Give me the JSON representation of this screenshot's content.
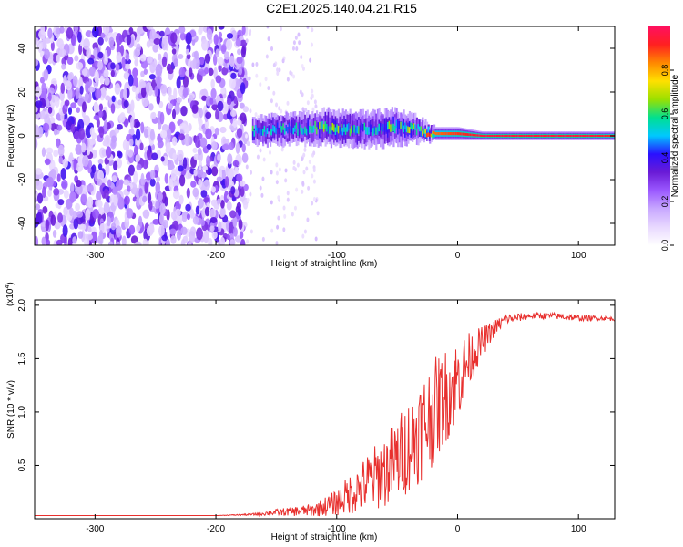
{
  "title": "C2E1.2025.140.04.21.R15",
  "chart_data": [
    {
      "type": "heatmap",
      "title": "C2E1.2025.140.04.21.R15",
      "xlabel": "Height of straight line (km)",
      "ylabel": "Frequency (Hz)",
      "xlim": [
        -350,
        130
      ],
      "ylim": [
        -50,
        50
      ],
      "x_ticks": [
        -300,
        -200,
        -100,
        0,
        100
      ],
      "y_ticks": [
        -40,
        -20,
        0,
        20,
        40
      ],
      "colorbar": {
        "label": "Normalized spectral amplitude",
        "range": [
          0,
          1
        ],
        "ticks": [
          "0.0",
          "0.2",
          "0.4",
          "0.6",
          "0.8"
        ],
        "colors": [
          "#ffffff",
          "#e8d8ff",
          "#c8a8ff",
          "#9b59ff",
          "#6a1bd6",
          "#2a10ff",
          "#00c8ff",
          "#00e090",
          "#9be000",
          "#ffe000",
          "#ff8800",
          "#ff2020",
          "#ff1060"
        ]
      },
      "signal_band": [
        {
          "x": -170,
          "center": 2,
          "width": 6,
          "amp": 0.55
        },
        {
          "x": -150,
          "center": 3,
          "width": 7,
          "amp": 0.5
        },
        {
          "x": -130,
          "center": 3,
          "width": 7,
          "amp": 0.55
        },
        {
          "x": -110,
          "center": 4,
          "width": 8,
          "amp": 0.6
        },
        {
          "x": -90,
          "center": 3,
          "width": 8,
          "amp": 0.55
        },
        {
          "x": -70,
          "center": 3,
          "width": 8,
          "amp": 0.5
        },
        {
          "x": -50,
          "center": 4,
          "width": 8,
          "amp": 0.6
        },
        {
          "x": -35,
          "center": 3,
          "width": 6,
          "amp": 0.6
        },
        {
          "x": -20,
          "center": 1,
          "width": 3,
          "amp": 0.85
        },
        {
          "x": 0,
          "center": 1,
          "width": 3,
          "amp": 0.9
        },
        {
          "x": 20,
          "center": 0,
          "width": 2,
          "amp": 0.95
        },
        {
          "x": 50,
          "center": 0,
          "width": 2,
          "amp": 0.95
        },
        {
          "x": 80,
          "center": 0,
          "width": 2,
          "amp": 0.95
        },
        {
          "x": 110,
          "center": 0,
          "width": 2,
          "amp": 0.95
        },
        {
          "x": 130,
          "center": 0,
          "width": 2,
          "amp": 0.9
        }
      ]
    },
    {
      "type": "line",
      "xlabel": "Height of straight line (km)",
      "ylabel": "SNR (10 * v/v)",
      "y_multiplier": "(x10",
      "y_multiplier_exp": "4",
      "xlim": [
        -350,
        130
      ],
      "ylim": [
        0,
        2.05
      ],
      "x_ticks": [
        -300,
        -200,
        -100,
        0,
        100
      ],
      "y_ticks": [
        "0.5",
        "1.0",
        "1.5",
        "2.0"
      ],
      "color": "#e8302e",
      "x": [
        -350,
        -300,
        -250,
        -200,
        -170,
        -150,
        -120,
        -100,
        -80,
        -60,
        -50,
        -40,
        -30,
        -20,
        -10,
        0,
        10,
        20,
        30,
        40,
        60,
        80,
        100,
        120,
        130
      ],
      "y": [
        0.03,
        0.03,
        0.03,
        0.03,
        0.04,
        0.06,
        0.08,
        0.15,
        0.3,
        0.45,
        0.55,
        0.7,
        0.85,
        1.0,
        1.15,
        1.3,
        1.5,
        1.65,
        1.78,
        1.87,
        1.9,
        1.9,
        1.88,
        1.88,
        1.87
      ],
      "noise_amp": [
        0,
        0,
        0,
        0,
        0.01,
        0.03,
        0.06,
        0.12,
        0.25,
        0.35,
        0.4,
        0.45,
        0.5,
        0.5,
        0.45,
        0.4,
        0.25,
        0.15,
        0.08,
        0.05,
        0.03,
        0.03,
        0.03,
        0.02,
        0.02
      ]
    }
  ]
}
